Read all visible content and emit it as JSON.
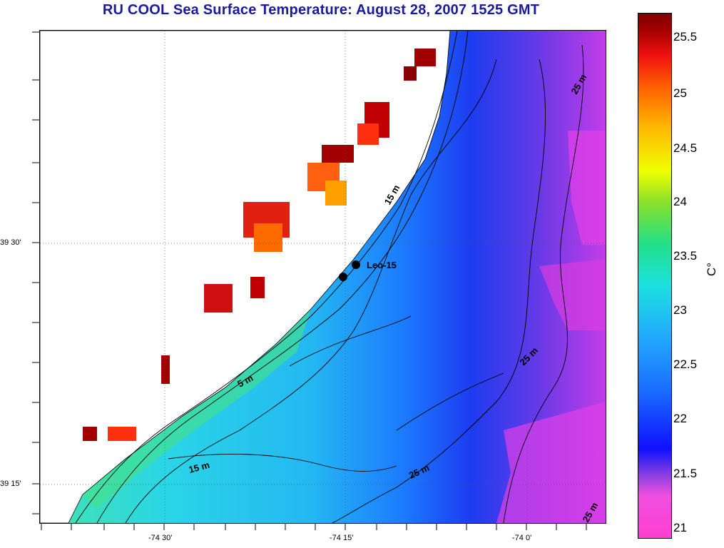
{
  "title": "RU COOL  Sea Surface Temperature:  August 28, 2007 1525 GMT",
  "lat_labels": {
    "l1": "39 30'",
    "l2": "39 15'"
  },
  "lon_labels": {
    "x1": "-74 30'",
    "x2": "-74 15'",
    "x3": "-74 0'"
  },
  "station_label": "Leo-15",
  "depth_labels": {
    "d1": "15 m",
    "d2": "5 m",
    "d3": "15 m",
    "d4": "25 m",
    "d5": "25 m",
    "d6": "25 m",
    "d7": "25 m"
  },
  "colorbar": {
    "unit": "C°",
    "ticks": [
      "25.5",
      "25",
      "24.5",
      "24",
      "23.5",
      "23",
      "22.5",
      "22",
      "21.5",
      "21"
    ]
  }
}
